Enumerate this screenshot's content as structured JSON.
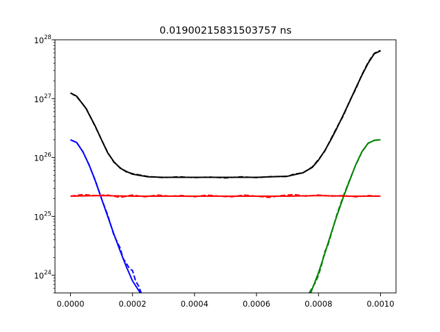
{
  "chart_data": {
    "type": "line",
    "title": "0.01900215831503757 ns",
    "xlabel": "",
    "ylabel": "",
    "xlim": [
      -5e-05,
      0.00105
    ],
    "ylim": [
      5e+23,
      1e+28
    ],
    "yscale": "log",
    "grid": false,
    "x_ticks": [
      {
        "value": 0.0,
        "label": "0.0000"
      },
      {
        "value": 0.0002,
        "label": "0.0002"
      },
      {
        "value": 0.0004,
        "label": "0.0004"
      },
      {
        "value": 0.0006,
        "label": "0.0006"
      },
      {
        "value": 0.0008,
        "label": "0.0008"
      },
      {
        "value": 0.001,
        "label": "0.0010"
      }
    ],
    "y_ticks": [
      {
        "value": 1e+24,
        "base": "10",
        "exp": "24"
      },
      {
        "value": 1e+25,
        "base": "10",
        "exp": "25"
      },
      {
        "value": 1e+26,
        "base": "10",
        "exp": "26"
      },
      {
        "value": 1e+27,
        "base": "10",
        "exp": "27"
      },
      {
        "value": 1e+28,
        "base": "10",
        "exp": "28"
      }
    ],
    "series": [
      {
        "color": "#000000",
        "style": "solid",
        "x": [
          0,
          2e-05,
          5e-05,
          8e-05,
          0.0001,
          0.00012,
          0.00014,
          0.00016,
          0.00018,
          0.0002,
          0.00025,
          0.0003,
          0.0004,
          0.0005,
          0.0006,
          0.0007,
          0.00075,
          0.00078,
          0.0008,
          0.00082,
          0.00084,
          0.00086,
          0.00088,
          0.0009,
          0.00092,
          0.00094,
          0.00096,
          0.00098,
          0.001
        ],
        "y": [
          1.25e+27,
          1.1e+27,
          6.8e+26,
          3.4e+26,
          2e+26,
          1.2e+26,
          8.5e+25,
          6.6e+25,
          5.8e+25,
          5.2e+25,
          4.7e+25,
          4.6e+25,
          4.6e+25,
          4.6e+25,
          4.6e+25,
          4.8e+25,
          5.5e+25,
          6.8e+25,
          9e+25,
          1.3e+26,
          2e+26,
          3.2e+26,
          5.3e+26,
          8.8e+26,
          1.5e+27,
          2.5e+27,
          4e+27,
          5.8e+27,
          6.5e+27
        ]
      },
      {
        "color": "#000000",
        "style": "dashed",
        "x": [
          0,
          2e-05,
          5e-05,
          8e-05,
          0.0001,
          0.00012,
          0.00014,
          0.00016,
          0.00018,
          0.0002,
          0.00025,
          0.0003,
          0.00035,
          0.0004,
          0.00045,
          0.0005,
          0.00055,
          0.0006,
          0.00065,
          0.0007,
          0.00072,
          0.00075,
          0.00078,
          0.0008,
          0.00082,
          0.00084,
          0.00086,
          0.00088,
          0.0009,
          0.00092,
          0.00094,
          0.00096,
          0.00098,
          0.001
        ],
        "y": [
          1.25e+27,
          1.08e+27,
          6.9e+26,
          3.35e+26,
          2e+26,
          1.22e+26,
          8.3e+25,
          6.7e+25,
          5.7e+25,
          5.3e+25,
          4.75e+25,
          4.55e+25,
          4.7e+25,
          4.55e+25,
          4.65e+25,
          4.5e+25,
          4.7e+25,
          4.55e+25,
          4.75e+25,
          4.75e+25,
          5.2e+25,
          5.5e+25,
          6.9e+25,
          9.2e+25,
          1.28e+26,
          2.05e+26,
          3.3e+26,
          5.1e+26,
          9e+26,
          1.45e+27,
          2.55e+27,
          4.1e+27,
          5.9e+27,
          6.6e+27
        ]
      },
      {
        "color": "#0000ff",
        "style": "solid",
        "x": [
          0,
          2e-05,
          4e-05,
          6e-05,
          8e-05,
          0.0001,
          0.00012,
          0.00014,
          0.00016,
          0.00018,
          0.0002,
          0.00022,
          0.000225
        ],
        "y": [
          2e+26,
          1.8e+26,
          1.25e+26,
          7.5e+25,
          4e+25,
          2e+25,
          1e+25,
          5e+24,
          2.6e+24,
          1.4e+24,
          8e+23,
          5.5e+23,
          5e+23
        ]
      },
      {
        "color": "#0000ff",
        "style": "dashed",
        "x": [
          0,
          2e-05,
          4e-05,
          6e-05,
          8e-05,
          0.0001,
          0.00012,
          0.00014,
          0.00016,
          0.00017,
          0.00018,
          0.00019,
          0.0002,
          0.00021,
          0.00022,
          0.000228
        ],
        "y": [
          2e+26,
          1.78e+26,
          1.26e+26,
          7.4e+25,
          4.1e+25,
          2e+25,
          1.05e+25,
          4.8e+24,
          2.9e+24,
          1.9e+24,
          1.6e+24,
          1.3e+24,
          1.2e+24,
          8e+23,
          6.5e+23,
          5e+23
        ]
      },
      {
        "color": "#008000",
        "style": "solid",
        "x": [
          0.000775,
          0.0008,
          0.00082,
          0.00084,
          0.00086,
          0.00088,
          0.0009,
          0.00092,
          0.00094,
          0.00096,
          0.00098,
          0.001
        ],
        "y": [
          5e+23,
          1.1e+24,
          2.3e+24,
          5e+24,
          1.05e+25,
          2.1e+25,
          4e+25,
          7.5e+25,
          1.25e+26,
          1.75e+26,
          1.95e+26,
          2e+26
        ]
      },
      {
        "color": "#008000",
        "style": "dashed",
        "x": [
          0.00077,
          0.00079,
          0.0008,
          0.00081,
          0.00082,
          0.00083,
          0.00084,
          0.00086,
          0.00088,
          0.0009,
          0.00092,
          0.00094,
          0.00096,
          0.00098,
          0.001
        ],
        "y": [
          5e+23,
          7.5e+23,
          1e+24,
          1.5e+24,
          2.5e+24,
          3.2e+24,
          4.8e+24,
          1.1e+25,
          2.2e+25,
          4.1e+25,
          7.4e+25,
          1.24e+26,
          1.74e+26,
          1.96e+26,
          2e+26
        ]
      },
      {
        "color": "#ff0000",
        "style": "solid",
        "x": [
          0,
          0.0001,
          0.0002,
          0.0003,
          0.0004,
          0.0005,
          0.0006,
          0.0007,
          0.0008,
          0.0009,
          0.001
        ],
        "y": [
          2.2e+25,
          2.25e+25,
          2.2e+25,
          2.2e+25,
          2.2e+25,
          2.2e+25,
          2.2e+25,
          2.2e+25,
          2.25e+25,
          2.2e+25,
          2.2e+25
        ]
      },
      {
        "color": "#ff0000",
        "style": "dashed",
        "x": [
          0,
          4e-05,
          8e-05,
          0.00012,
          0.00016,
          0.0002,
          0.00024,
          0.00028,
          0.00032,
          0.00036,
          0.0004,
          0.00044,
          0.00048,
          0.00052,
          0.00056,
          0.0006,
          0.00064,
          0.00068,
          0.00072,
          0.00076,
          0.0008,
          0.00084,
          0.00088,
          0.00092,
          0.00096,
          0.001
        ],
        "y": [
          2.2e+25,
          2.35e+25,
          2.25e+25,
          2.3e+25,
          2.1e+25,
          2.3e+25,
          2.15e+25,
          2.3e+25,
          2.2e+25,
          2.25e+25,
          2.15e+25,
          2.3e+25,
          2.2e+25,
          2.15e+25,
          2.3e+25,
          2.2e+25,
          2.1e+25,
          2.25e+25,
          2.35e+25,
          2.2e+25,
          2.3e+25,
          2.2e+25,
          2.25e+25,
          2.15e+25,
          2.25e+25,
          2.2e+25
        ]
      }
    ]
  }
}
